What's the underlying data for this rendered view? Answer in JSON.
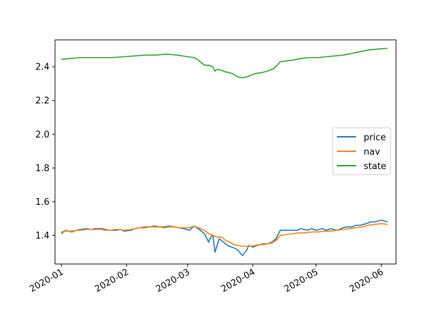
{
  "chart_data": {
    "type": "line",
    "title": "",
    "xlabel": "",
    "ylabel": "",
    "xlim": [
      "2019-12-29",
      "2020-06-08"
    ],
    "ylim": [
      1.23,
      2.56
    ],
    "x_ticks": [
      "2020-01",
      "2020-02",
      "2020-03",
      "2020-04",
      "2020-05",
      "2020-06"
    ],
    "y_ticks": [
      "1.4",
      "1.6",
      "1.8",
      "2.0",
      "2.2",
      "2.4"
    ],
    "legend_position": "center-right",
    "grid": false,
    "series": [
      {
        "name": "price",
        "color": "#1f77b4",
        "points": [
          [
            "2020-01-01",
            1.41
          ],
          [
            "2020-01-03",
            1.43
          ],
          [
            "2020-01-06",
            1.42
          ],
          [
            "2020-01-08",
            1.43
          ],
          [
            "2020-01-10",
            1.435
          ],
          [
            "2020-01-13",
            1.44
          ],
          [
            "2020-01-15",
            1.435
          ],
          [
            "2020-01-17",
            1.44
          ],
          [
            "2020-01-20",
            1.44
          ],
          [
            "2020-01-22",
            1.435
          ],
          [
            "2020-01-24",
            1.43
          ],
          [
            "2020-01-27",
            1.43
          ],
          [
            "2020-01-29",
            1.435
          ],
          [
            "2020-01-31",
            1.425
          ],
          [
            "2020-02-03",
            1.43
          ],
          [
            "2020-02-05",
            1.44
          ],
          [
            "2020-02-07",
            1.445
          ],
          [
            "2020-02-10",
            1.45
          ],
          [
            "2020-02-12",
            1.45
          ],
          [
            "2020-02-14",
            1.455
          ],
          [
            "2020-02-17",
            1.45
          ],
          [
            "2020-02-19",
            1.45
          ],
          [
            "2020-02-21",
            1.455
          ],
          [
            "2020-02-24",
            1.45
          ],
          [
            "2020-02-26",
            1.445
          ],
          [
            "2020-02-28",
            1.44
          ],
          [
            "2020-03-02",
            1.43
          ],
          [
            "2020-03-04",
            1.455
          ],
          [
            "2020-03-06",
            1.44
          ],
          [
            "2020-03-09",
            1.41
          ],
          [
            "2020-03-11",
            1.36
          ],
          [
            "2020-03-12",
            1.39
          ],
          [
            "2020-03-13",
            1.4
          ],
          [
            "2020-03-14",
            1.3
          ],
          [
            "2020-03-16",
            1.38
          ],
          [
            "2020-03-18",
            1.36
          ],
          [
            "2020-03-20",
            1.34
          ],
          [
            "2020-03-22",
            1.33
          ],
          [
            "2020-03-24",
            1.32
          ],
          [
            "2020-03-25",
            1.31
          ],
          [
            "2020-03-27",
            1.28
          ],
          [
            "2020-03-29",
            1.31
          ],
          [
            "2020-03-30",
            1.34
          ],
          [
            "2020-04-01",
            1.33
          ],
          [
            "2020-04-03",
            1.34
          ],
          [
            "2020-04-06",
            1.35
          ],
          [
            "2020-04-08",
            1.35
          ],
          [
            "2020-04-10",
            1.36
          ],
          [
            "2020-04-12",
            1.38
          ],
          [
            "2020-04-14",
            1.43
          ],
          [
            "2020-04-16",
            1.43
          ],
          [
            "2020-04-20",
            1.43
          ],
          [
            "2020-04-22",
            1.43
          ],
          [
            "2020-04-24",
            1.44
          ],
          [
            "2020-04-27",
            1.43
          ],
          [
            "2020-04-29",
            1.44
          ],
          [
            "2020-05-01",
            1.43
          ],
          [
            "2020-05-04",
            1.44
          ],
          [
            "2020-05-06",
            1.43
          ],
          [
            "2020-05-08",
            1.44
          ],
          [
            "2020-05-11",
            1.43
          ],
          [
            "2020-05-13",
            1.44
          ],
          [
            "2020-05-15",
            1.45
          ],
          [
            "2020-05-18",
            1.45
          ],
          [
            "2020-05-20",
            1.46
          ],
          [
            "2020-05-22",
            1.46
          ],
          [
            "2020-05-25",
            1.47
          ],
          [
            "2020-05-27",
            1.48
          ],
          [
            "2020-05-29",
            1.48
          ],
          [
            "2020-06-01",
            1.49
          ],
          [
            "2020-06-04",
            1.48
          ]
        ]
      },
      {
        "name": "nav",
        "color": "#ff7f0e",
        "points": [
          [
            "2020-01-01",
            1.42
          ],
          [
            "2020-01-03",
            1.425
          ],
          [
            "2020-01-06",
            1.425
          ],
          [
            "2020-01-08",
            1.43
          ],
          [
            "2020-01-10",
            1.43
          ],
          [
            "2020-01-13",
            1.435
          ],
          [
            "2020-01-15",
            1.435
          ],
          [
            "2020-01-17",
            1.435
          ],
          [
            "2020-01-20",
            1.435
          ],
          [
            "2020-01-22",
            1.43
          ],
          [
            "2020-01-24",
            1.43
          ],
          [
            "2020-01-27",
            1.435
          ],
          [
            "2020-01-29",
            1.435
          ],
          [
            "2020-01-31",
            1.43
          ],
          [
            "2020-02-03",
            1.435
          ],
          [
            "2020-02-05",
            1.44
          ],
          [
            "2020-02-07",
            1.445
          ],
          [
            "2020-02-10",
            1.445
          ],
          [
            "2020-02-12",
            1.45
          ],
          [
            "2020-02-14",
            1.45
          ],
          [
            "2020-02-17",
            1.45
          ],
          [
            "2020-02-19",
            1.445
          ],
          [
            "2020-02-21",
            1.45
          ],
          [
            "2020-02-24",
            1.45
          ],
          [
            "2020-02-26",
            1.445
          ],
          [
            "2020-02-28",
            1.445
          ],
          [
            "2020-03-02",
            1.445
          ],
          [
            "2020-03-04",
            1.455
          ],
          [
            "2020-03-06",
            1.445
          ],
          [
            "2020-03-09",
            1.43
          ],
          [
            "2020-03-11",
            1.41
          ],
          [
            "2020-03-13",
            1.4
          ],
          [
            "2020-03-15",
            1.39
          ],
          [
            "2020-03-17",
            1.39
          ],
          [
            "2020-03-19",
            1.37
          ],
          [
            "2020-03-21",
            1.36
          ],
          [
            "2020-03-23",
            1.345
          ],
          [
            "2020-03-25",
            1.34
          ],
          [
            "2020-03-27",
            1.335
          ],
          [
            "2020-03-29",
            1.335
          ],
          [
            "2020-03-31",
            1.335
          ],
          [
            "2020-04-02",
            1.34
          ],
          [
            "2020-04-04",
            1.345
          ],
          [
            "2020-04-06",
            1.345
          ],
          [
            "2020-04-08",
            1.35
          ],
          [
            "2020-04-10",
            1.355
          ],
          [
            "2020-04-12",
            1.37
          ],
          [
            "2020-04-14",
            1.4
          ],
          [
            "2020-04-17",
            1.405
          ],
          [
            "2020-04-20",
            1.41
          ],
          [
            "2020-04-23",
            1.415
          ],
          [
            "2020-04-26",
            1.415
          ],
          [
            "2020-04-29",
            1.42
          ],
          [
            "2020-05-02",
            1.42
          ],
          [
            "2020-05-05",
            1.425
          ],
          [
            "2020-05-08",
            1.425
          ],
          [
            "2020-05-11",
            1.43
          ],
          [
            "2020-05-14",
            1.435
          ],
          [
            "2020-05-17",
            1.44
          ],
          [
            "2020-05-20",
            1.445
          ],
          [
            "2020-05-23",
            1.45
          ],
          [
            "2020-05-26",
            1.46
          ],
          [
            "2020-05-29",
            1.465
          ],
          [
            "2020-06-01",
            1.47
          ],
          [
            "2020-06-04",
            1.465
          ]
        ]
      },
      {
        "name": "state",
        "color": "#2ca02c",
        "points": [
          [
            "2020-01-01",
            2.445
          ],
          [
            "2020-01-06",
            2.45
          ],
          [
            "2020-01-10",
            2.455
          ],
          [
            "2020-01-15",
            2.455
          ],
          [
            "2020-01-20",
            2.455
          ],
          [
            "2020-01-25",
            2.455
          ],
          [
            "2020-01-31",
            2.46
          ],
          [
            "2020-02-05",
            2.465
          ],
          [
            "2020-02-10",
            2.47
          ],
          [
            "2020-02-15",
            2.47
          ],
          [
            "2020-02-20",
            2.475
          ],
          [
            "2020-02-25",
            2.47
          ],
          [
            "2020-03-01",
            2.46
          ],
          [
            "2020-03-04",
            2.455
          ],
          [
            "2020-03-06",
            2.44
          ],
          [
            "2020-03-09",
            2.41
          ],
          [
            "2020-03-11",
            2.41
          ],
          [
            "2020-03-13",
            2.4
          ],
          [
            "2020-03-14",
            2.375
          ],
          [
            "2020-03-15",
            2.385
          ],
          [
            "2020-03-17",
            2.38
          ],
          [
            "2020-03-19",
            2.37
          ],
          [
            "2020-03-21",
            2.365
          ],
          [
            "2020-03-23",
            2.355
          ],
          [
            "2020-03-25",
            2.34
          ],
          [
            "2020-03-27",
            2.335
          ],
          [
            "2020-03-29",
            2.34
          ],
          [
            "2020-03-31",
            2.35
          ],
          [
            "2020-04-02",
            2.36
          ],
          [
            "2020-04-05",
            2.365
          ],
          [
            "2020-04-08",
            2.375
          ],
          [
            "2020-04-11",
            2.39
          ],
          [
            "2020-04-14",
            2.43
          ],
          [
            "2020-04-17",
            2.435
          ],
          [
            "2020-04-20",
            2.44
          ],
          [
            "2020-04-24",
            2.45
          ],
          [
            "2020-04-28",
            2.455
          ],
          [
            "2020-05-02",
            2.455
          ],
          [
            "2020-05-06",
            2.46
          ],
          [
            "2020-05-10",
            2.465
          ],
          [
            "2020-05-14",
            2.47
          ],
          [
            "2020-05-18",
            2.48
          ],
          [
            "2020-05-22",
            2.49
          ],
          [
            "2020-05-26",
            2.5
          ],
          [
            "2020-05-30",
            2.505
          ],
          [
            "2020-06-04",
            2.51
          ]
        ]
      }
    ]
  }
}
